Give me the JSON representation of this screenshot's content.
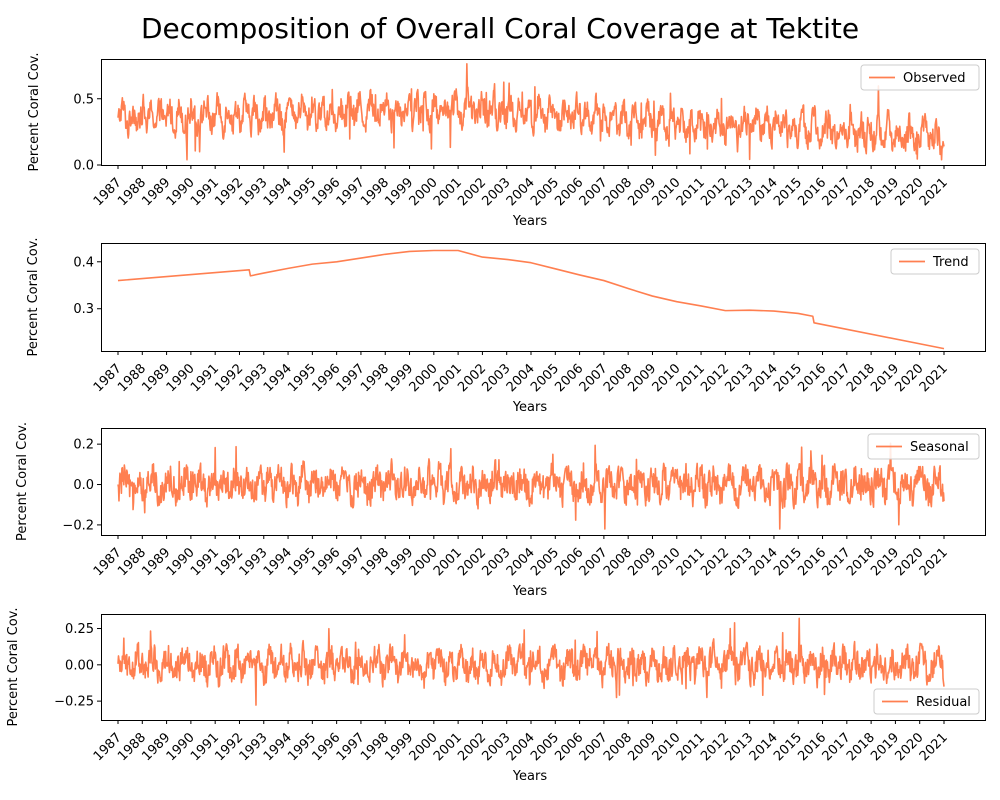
{
  "figure": {
    "title": "Decomposition of Overall Coral Coverage at Tektite"
  },
  "style": {
    "line_color": "#ff7f50",
    "axis_color": "#000000",
    "legend_border_color": "#cccccc"
  },
  "chart_data": [
    {
      "type": "line",
      "series": [
        {
          "name": "Observed"
        }
      ],
      "xlabel": "Years",
      "ylabel": "Percent Coral Cov.",
      "xlim": [
        1987,
        2021
      ],
      "ylim": [
        0.0,
        0.8
      ],
      "yticks": [
        0.0,
        0.5
      ],
      "ytick_labels": [
        "0.0",
        "0.5"
      ],
      "legend_position": "upper right",
      "grid": false,
      "shape": {
        "kind": "observed",
        "trend_points": [
          [
            1987,
            0.36
          ],
          [
            1992.4,
            0.383
          ],
          [
            1992.45,
            0.37
          ],
          [
            1993,
            0.375
          ],
          [
            1995,
            0.395
          ],
          [
            1997,
            0.41
          ],
          [
            1998.5,
            0.42
          ],
          [
            2001,
            0.425
          ],
          [
            2002,
            0.41
          ],
          [
            2003,
            0.405
          ],
          [
            2004,
            0.395
          ],
          [
            2005,
            0.38
          ],
          [
            2006,
            0.37
          ],
          [
            2007,
            0.36
          ],
          [
            2008,
            0.34
          ],
          [
            2009,
            0.325
          ],
          [
            2010,
            0.313
          ],
          [
            2011,
            0.305
          ],
          [
            2012,
            0.295
          ],
          [
            2013,
            0.297
          ],
          [
            2014,
            0.294
          ],
          [
            2015,
            0.29
          ],
          [
            2015.6,
            0.283
          ],
          [
            2015.65,
            0.27
          ],
          [
            2021,
            0.215
          ]
        ],
        "seasonal_amplitude": 0.07,
        "noise_amplitude": 0.1,
        "min": 0.04,
        "max": 0.77,
        "end_value": 0.14
      }
    },
    {
      "type": "line",
      "series": [
        {
          "name": "Trend"
        }
      ],
      "xlabel": "Years",
      "ylabel": "Percent Coral Cov.",
      "xlim": [
        1987,
        2021
      ],
      "ylim": [
        0.21,
        0.44
      ],
      "yticks": [
        0.3,
        0.4
      ],
      "ytick_labels": [
        "0.3",
        "0.4"
      ],
      "legend_position": "upper right",
      "grid": false,
      "x": [
        1987,
        1992.4,
        1992.45,
        1993,
        1994,
        1995,
        1996,
        1997,
        1998,
        1999,
        2000,
        2001,
        2002,
        2003,
        2004,
        2005,
        2006,
        2007,
        2008,
        2009,
        2010,
        2011,
        2012,
        2013,
        2014,
        2015,
        2015.6,
        2015.65,
        2021
      ],
      "values": [
        0.36,
        0.383,
        0.37,
        0.376,
        0.386,
        0.395,
        0.4,
        0.408,
        0.416,
        0.422,
        0.424,
        0.424,
        0.41,
        0.405,
        0.398,
        0.385,
        0.372,
        0.36,
        0.343,
        0.327,
        0.315,
        0.306,
        0.296,
        0.297,
        0.295,
        0.29,
        0.284,
        0.27,
        0.215
      ],
      "shape": {
        "kind": "polyline"
      }
    },
    {
      "type": "line",
      "series": [
        {
          "name": "Seasonal"
        }
      ],
      "xlabel": "Years",
      "ylabel": "Percent Coral Cov.",
      "xlim": [
        1987,
        2021
      ],
      "ylim": [
        -0.25,
        0.28
      ],
      "yticks": [
        -0.2,
        0.0,
        0.2
      ],
      "ytick_labels": [
        "−0.2",
        "0.0",
        "0.2"
      ],
      "legend_position": "upper right",
      "grid": false,
      "shape": {
        "kind": "oscillation",
        "amplitude": 0.09,
        "min": -0.22,
        "max": 0.26,
        "center": 0.0
      }
    },
    {
      "type": "line",
      "series": [
        {
          "name": "Residual"
        }
      ],
      "xlabel": "Years",
      "ylabel": "Percent Coral Cov.",
      "xlim": [
        1987,
        2021
      ],
      "ylim": [
        -0.38,
        0.35
      ],
      "yticks": [
        -0.25,
        0.0,
        0.25
      ],
      "ytick_labels": [
        "−0.25",
        "0.00",
        "0.25"
      ],
      "legend_position": "lower right",
      "grid": false,
      "shape": {
        "kind": "oscillation",
        "amplitude": 0.12,
        "min": -0.35,
        "max": 0.32,
        "center": 0.0,
        "end_value": -0.15
      }
    }
  ],
  "x_ticks": [
    "1987",
    "1988",
    "1989",
    "1990",
    "1991",
    "1992",
    "1993",
    "1994",
    "1995",
    "1996",
    "1997",
    "1998",
    "1999",
    "2000",
    "2001",
    "2002",
    "2003",
    "2004",
    "2005",
    "2006",
    "2007",
    "2008",
    "2009",
    "2010",
    "2011",
    "2012",
    "2013",
    "2014",
    "2015",
    "2016",
    "2017",
    "2018",
    "2019",
    "2020",
    "2021"
  ]
}
